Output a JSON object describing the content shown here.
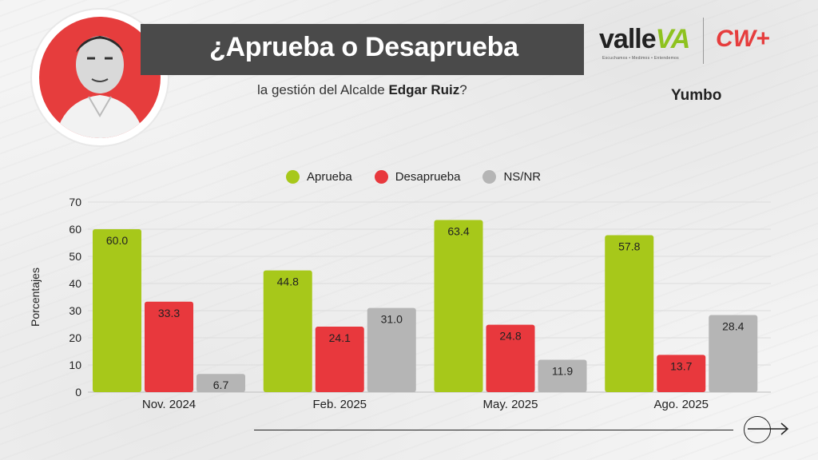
{
  "header": {
    "title": "¿Aprueba o Desaprueba",
    "subtitle_prefix": "la gestión del Alcalde ",
    "subtitle_name": "Edgar Ruiz",
    "subtitle_suffix": "?"
  },
  "brand": {
    "valle_text": "valle",
    "valle_accent": "VA",
    "valle_tagline": "Escuchamos • Medimos • Entendemos",
    "cw_text": "CW+"
  },
  "location": "Yumbo",
  "colors": {
    "aprueba": "#a7c81a",
    "desaprueba": "#e8383d",
    "nsnr": "#b5b5b5",
    "title_bar": "#4a4a4a",
    "accent_red": "#e63d3d"
  },
  "chart_data": {
    "type": "bar",
    "categories": [
      "Nov. 2024",
      "Feb. 2025",
      "May. 2025",
      "Ago. 2025"
    ],
    "series": [
      {
        "name": "Aprueba",
        "values": [
          60.0,
          44.8,
          63.4,
          57.8
        ]
      },
      {
        "name": "Desaprueba",
        "values": [
          33.3,
          24.1,
          24.8,
          13.7
        ]
      },
      {
        "name": "NS/NR",
        "values": [
          6.7,
          31.0,
          11.9,
          28.4
        ]
      }
    ],
    "ylabel": "Porcentajes",
    "xlabel": "",
    "ylim": [
      0,
      70
    ],
    "yticks": [
      0,
      10,
      20,
      30,
      40,
      50,
      60,
      70
    ],
    "grid": true,
    "legend_position": "top"
  }
}
